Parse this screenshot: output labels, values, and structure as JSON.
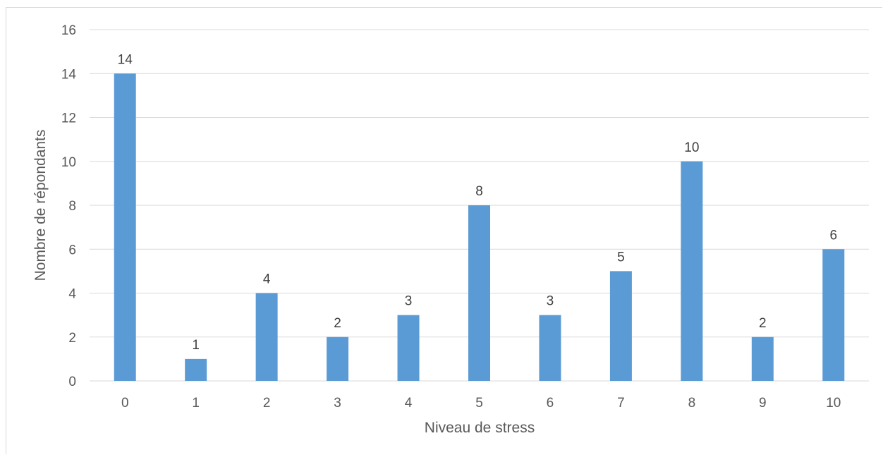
{
  "chart_data": {
    "type": "bar",
    "categories": [
      "0",
      "1",
      "2",
      "3",
      "4",
      "5",
      "6",
      "7",
      "8",
      "9",
      "10"
    ],
    "values": [
      14,
      1,
      4,
      2,
      3,
      8,
      3,
      5,
      10,
      2,
      6
    ],
    "xlabel": "Niveau de stress",
    "ylabel": "Nombre de répondants",
    "ylim": [
      0,
      16
    ],
    "yticks": [
      0,
      2,
      4,
      6,
      8,
      10,
      12,
      14,
      16
    ],
    "grid": true,
    "data_labels": true,
    "colors": {
      "bar": "#5b9bd5",
      "grid": "#d9d9d9",
      "text": "#595959"
    }
  }
}
